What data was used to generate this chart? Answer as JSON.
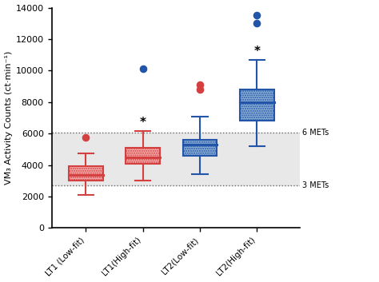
{
  "title": "",
  "ylabel": "VM₃ Activity Counts (ct·min⁻¹)",
  "xlabel": "",
  "ylim": [
    0,
    14000
  ],
  "yticks": [
    0,
    2000,
    4000,
    6000,
    8000,
    10000,
    12000,
    14000
  ],
  "categories": [
    "LT1 (Low-fit)",
    "LT1(High-fit)",
    "LT2(Low-fit)",
    "LT2(High-fit)"
  ],
  "box_colors": [
    "#F4AAAA",
    "#F4AAAA",
    "#8BAFD4",
    "#8BAFD4"
  ],
  "edge_colors": [
    "#D44040",
    "#D44040",
    "#2255AA",
    "#2255AA"
  ],
  "flier_colors": [
    "#D44040",
    "#2255AA",
    "#D44040",
    "#2255AA"
  ],
  "box_data": [
    {
      "q1": 3000,
      "median": 3350,
      "q3": 3950,
      "whislo": 2100,
      "whishi": 4750,
      "fliers": [
        5750
      ]
    },
    {
      "q1": 4100,
      "median": 4500,
      "q3": 5100,
      "whislo": 3000,
      "whishi": 6150,
      "fliers": [
        10100
      ]
    },
    {
      "q1": 4600,
      "median": 5300,
      "q3": 5600,
      "whislo": 3400,
      "whishi": 7100,
      "fliers": [
        8800,
        9100
      ]
    },
    {
      "q1": 6800,
      "median": 8000,
      "q3": 8800,
      "whislo": 5200,
      "whishi": 10700,
      "fliers": [
        13000,
        13500
      ]
    }
  ],
  "significance_labels": [
    false,
    true,
    false,
    true
  ],
  "hline_6mets": 6050,
  "hline_3mets": 2700,
  "hline_label_6": "6 METs",
  "hline_label_3": "3 METs",
  "background_color": "#ffffff",
  "band_color": "#e8e8e8"
}
